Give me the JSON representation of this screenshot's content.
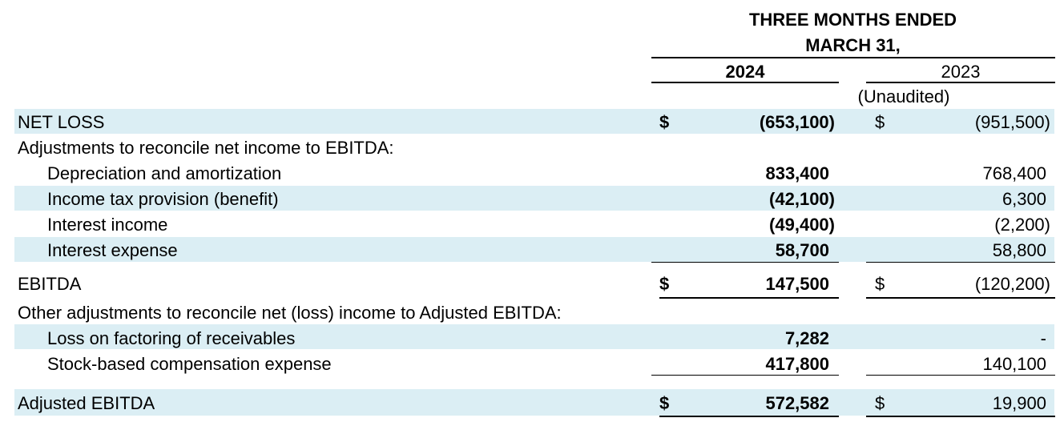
{
  "header": {
    "period_line1": "THREE MONTHS ENDED",
    "period_line2": "MARCH 31,",
    "year_2024": "2024",
    "year_2023": "2023",
    "unaudited": "(Unaudited)"
  },
  "currency_symbol": "$",
  "rows": {
    "net_loss": {
      "label": "NET LOSS",
      "v2024": "(653,100)",
      "v2023": "(951,500)"
    },
    "adjustments_heading": {
      "label": "Adjustments to reconcile net income to EBITDA:"
    },
    "depreciation": {
      "label": "Depreciation and amortization",
      "v2024": "833,400",
      "v2023": "768,400"
    },
    "income_tax": {
      "label": "Income tax provision (benefit)",
      "v2024": "(42,100)",
      "v2023": "6,300"
    },
    "interest_income": {
      "label": "Interest income",
      "v2024": "(49,400)",
      "v2023": "(2,200)"
    },
    "interest_expense": {
      "label": "Interest expense",
      "v2024": "58,700",
      "v2023": "58,800"
    },
    "ebitda": {
      "label": "EBITDA",
      "v2024": "147,500",
      "v2023": "(120,200)"
    },
    "other_adjustments_heading": {
      "label": "Other adjustments to reconcile net (loss) income to Adjusted EBITDA:"
    },
    "factoring_loss": {
      "label": "Loss on factoring of receivables",
      "v2024": "7,282",
      "v2023": "-"
    },
    "stock_comp": {
      "label": "Stock-based compensation expense",
      "v2024": "417,800",
      "v2023": "140,100"
    },
    "adjusted_ebitda": {
      "label": "Adjusted EBITDA",
      "v2024": "572,582",
      "v2023": "19,900"
    }
  }
}
